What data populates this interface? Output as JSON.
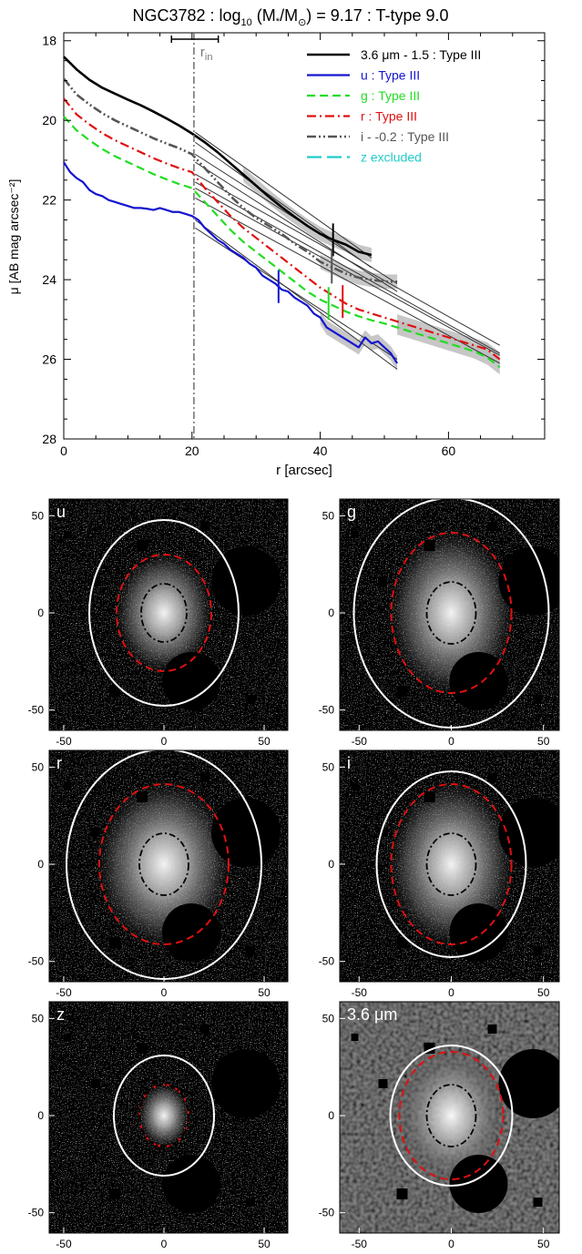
{
  "title_parts": {
    "pre": "NGC3782 : log",
    "sub10": "10",
    "mid": " (M",
    "star": "*",
    "slash": "/M",
    "sun": "⊙",
    "post": ") = 9.17 : T-type 9.0"
  },
  "colors": {
    "black": "#000000",
    "u": "#1414d2",
    "g": "#22dd22",
    "r": "#e01010",
    "i": "#555555",
    "z": "#22cccc",
    "fit": "#333333",
    "band": "#bdbdbd"
  },
  "chart_data": {
    "type": "line",
    "xlabel": "r [arcsec]",
    "ylabel": "μ [AB mag arcsec⁻²]",
    "xlim": [
      0,
      75
    ],
    "ylim": [
      28,
      17.8
    ],
    "xticks": [
      0,
      20,
      40,
      60
    ],
    "yticks": [
      18,
      20,
      22,
      24,
      26,
      28
    ],
    "r_in": 20.3,
    "r_in_label": "r",
    "r_in_label_sub": "in",
    "r_in_error": [
      16.8,
      24.1
    ],
    "series": [
      {
        "name": "3.6 μm - 1.5 : Type III",
        "color": "black",
        "dash": "",
        "width": 2.6,
        "x": [
          0,
          2,
          4,
          6,
          8,
          10,
          12,
          14,
          16,
          18,
          20,
          22,
          24,
          26,
          28,
          30,
          32,
          34,
          36,
          38,
          40,
          42,
          44,
          46,
          48
        ],
        "y": [
          18.4,
          18.72,
          18.98,
          19.18,
          19.33,
          19.48,
          19.62,
          19.78,
          19.95,
          20.13,
          20.33,
          20.55,
          20.8,
          21.08,
          21.36,
          21.64,
          21.92,
          22.18,
          22.42,
          22.65,
          22.85,
          23.0,
          23.12,
          23.3,
          23.38
        ],
        "break_x": 42.0,
        "shade": [
          28,
          48
        ],
        "fits": [
          {
            "x": [
              20.5,
              48
            ],
            "y": [
              20.3,
              23.45
            ]
          },
          {
            "x": [
              20.5,
              48
            ],
            "y": [
              20.55,
              23.7
            ]
          }
        ]
      },
      {
        "name": "u : Type III",
        "color": "u",
        "dash": "",
        "width": 2.2,
        "x": [
          0,
          1,
          2,
          3,
          4,
          5,
          6,
          7,
          8,
          9,
          10,
          11,
          12,
          13,
          14,
          15,
          16,
          17,
          18,
          19,
          20,
          21,
          22,
          23,
          24,
          25,
          26,
          27,
          28,
          29,
          30,
          31,
          32,
          33,
          34,
          35,
          36,
          37,
          38,
          39,
          40,
          41,
          42,
          43,
          44,
          45,
          46,
          47,
          48,
          49,
          50,
          51,
          52
        ],
        "y": [
          21.05,
          21.3,
          21.45,
          21.55,
          21.75,
          21.85,
          21.9,
          22.0,
          22.05,
          22.1,
          22.15,
          22.2,
          22.2,
          22.22,
          22.25,
          22.2,
          22.25,
          22.3,
          22.3,
          22.35,
          22.4,
          22.5,
          22.7,
          22.85,
          23.0,
          23.1,
          23.25,
          23.35,
          23.45,
          23.6,
          23.7,
          23.9,
          24.0,
          24.1,
          24.25,
          24.3,
          24.45,
          24.55,
          24.65,
          24.85,
          24.95,
          25.2,
          25.3,
          25.4,
          25.5,
          25.6,
          25.7,
          25.45,
          25.6,
          25.55,
          25.7,
          25.85,
          26.1
        ],
        "break_x": 33.5,
        "shade": [
          40,
          52
        ],
        "fits": [
          {
            "x": [
              20.5,
              52
            ],
            "y": [
              22.5,
              26.25
            ]
          },
          {
            "x": [
              20.5,
              52
            ],
            "y": [
              22.7,
              26.0
            ]
          }
        ]
      },
      {
        "name": "g : Type III",
        "color": "g",
        "dash": "9,5",
        "width": 2.2,
        "x": [
          0,
          2,
          4,
          6,
          8,
          10,
          12,
          14,
          16,
          18,
          20,
          22,
          24,
          26,
          28,
          30,
          32,
          34,
          36,
          38,
          40,
          42,
          44,
          46,
          48,
          50,
          52,
          54,
          56,
          58,
          60,
          62,
          64,
          66,
          68
        ],
        "y": [
          19.9,
          20.25,
          20.5,
          20.72,
          20.9,
          21.05,
          21.2,
          21.35,
          21.48,
          21.6,
          21.7,
          22.05,
          22.4,
          22.75,
          23.05,
          23.3,
          23.55,
          23.8,
          24.05,
          24.3,
          24.5,
          24.65,
          24.8,
          24.92,
          25.02,
          25.1,
          25.2,
          25.3,
          25.4,
          25.5,
          25.6,
          25.7,
          25.8,
          25.95,
          26.2
        ],
        "break_x": 41.3,
        "shade": [
          52,
          68
        ],
        "fits": [
          {
            "x": [
              20.5,
              68
            ],
            "y": [
              21.7,
              25.9
            ]
          },
          {
            "x": [
              20.5,
              68
            ],
            "y": [
              21.95,
              26.1
            ]
          }
        ]
      },
      {
        "name": "r : Type III",
        "color": "r",
        "dash": "10,4,2,4",
        "width": 2.2,
        "x": [
          0,
          2,
          4,
          6,
          8,
          10,
          12,
          14,
          16,
          18,
          20,
          22,
          24,
          26,
          28,
          30,
          32,
          34,
          36,
          38,
          40,
          42,
          44,
          46,
          48,
          50,
          52,
          54,
          56,
          58,
          60,
          62,
          64,
          66,
          68
        ],
        "y": [
          19.45,
          19.85,
          20.1,
          20.32,
          20.5,
          20.65,
          20.8,
          20.95,
          21.08,
          21.2,
          21.3,
          21.7,
          22.05,
          22.4,
          22.7,
          22.95,
          23.2,
          23.45,
          23.7,
          23.95,
          24.2,
          24.4,
          24.6,
          24.75,
          24.85,
          24.95,
          25.05,
          25.15,
          25.25,
          25.35,
          25.45,
          25.55,
          25.65,
          25.75,
          26.0
        ],
        "break_x": 43.5,
        "shade": [
          52,
          68
        ],
        "fits": [
          {
            "x": [
              20.5,
              68
            ],
            "y": [
              21.35,
              25.65
            ]
          },
          {
            "x": [
              20.5,
              68
            ],
            "y": [
              21.55,
              25.85
            ]
          }
        ]
      },
      {
        "name": "i - -0.2 : Type III",
        "color": "i",
        "dash": "10,3,2,3,2,3",
        "width": 2.6,
        "x": [
          0,
          2,
          4,
          6,
          8,
          10,
          12,
          14,
          16,
          18,
          20,
          22,
          24,
          26,
          28,
          30,
          32,
          34,
          36,
          38,
          40,
          42,
          44,
          46,
          48,
          50,
          52
        ],
        "y": [
          18.95,
          19.35,
          19.6,
          19.82,
          20.0,
          20.15,
          20.3,
          20.45,
          20.58,
          20.7,
          20.85,
          21.2,
          21.55,
          21.9,
          22.2,
          22.45,
          22.65,
          22.85,
          23.1,
          23.3,
          23.55,
          23.7,
          23.85,
          23.95,
          24.0,
          24.05,
          24.05
        ],
        "break_x": 41.8,
        "shade": [
          40,
          52
        ],
        "fits": [
          {
            "x": [
              20.5,
              52
            ],
            "y": [
              20.85,
              24.1
            ]
          },
          {
            "x": [
              20.5,
              52
            ],
            "y": [
              21.05,
              24.3
            ]
          }
        ]
      },
      {
        "name": "z excluded",
        "color": "z",
        "dash": "16,6",
        "width": 2.2,
        "legend_only": true
      }
    ]
  },
  "panels": [
    {
      "label": "u",
      "labelColor": "#ffffff",
      "xticks": [
        "-50",
        "0",
        "50"
      ],
      "yticks": [
        "50",
        "0",
        "-50"
      ]
    },
    {
      "label": "g",
      "labelColor": "#ffffff",
      "xticks": [
        "-50",
        "0",
        "50"
      ],
      "yticks": [
        "50",
        "0",
        "-50"
      ]
    },
    {
      "label": "r",
      "labelColor": "#ffffff",
      "xticks": [
        "-50",
        "0",
        "50"
      ],
      "yticks": [
        "50",
        "0",
        "-50"
      ]
    },
    {
      "label": "i",
      "labelColor": "#ffffff",
      "xticks": [
        "-50",
        "0",
        "50"
      ],
      "yticks": [
        "50",
        "0",
        "-50"
      ]
    },
    {
      "label": "z",
      "labelColor": "#ffffff",
      "xticks": [
        "-50",
        "0",
        "50"
      ],
      "yticks": [
        "50",
        "0",
        "-50"
      ]
    },
    {
      "label": "3.6 μm",
      "labelColor": "#ffffff",
      "xticks": [
        "-50",
        "0",
        "50"
      ],
      "yticks": [
        "50",
        "0",
        "-50"
      ]
    }
  ]
}
